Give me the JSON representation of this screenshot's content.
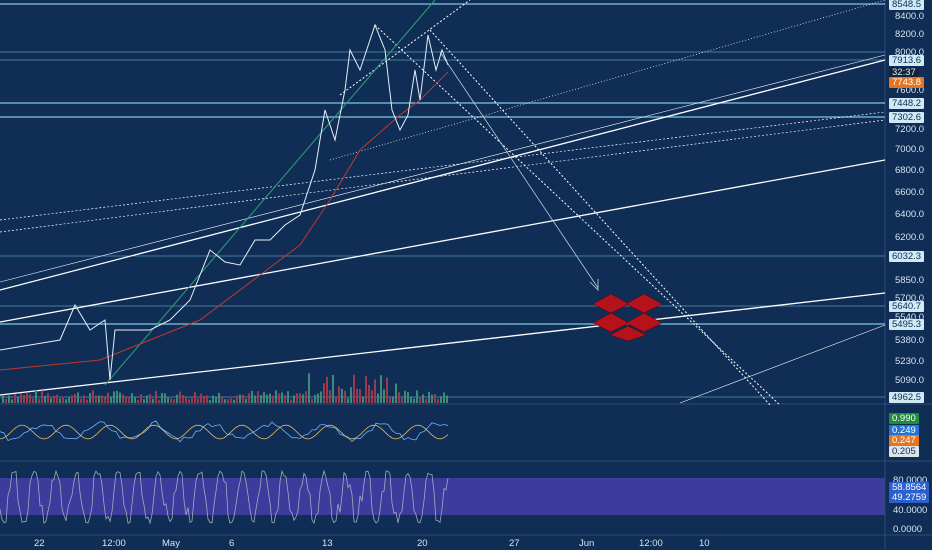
{
  "price_axis": {
    "labels": [
      "8400.0",
      "8200.0",
      "8000.0",
      "7600.0",
      "7200.0",
      "7000.0",
      "6800.0",
      "6600.0",
      "6400.0",
      "6200.0",
      "5850.0",
      "5700.0",
      "5540.0",
      "5380.0",
      "5230.0",
      "5090.0"
    ],
    "badges": [
      "8548.5",
      "7913.6",
      "32:37",
      "7743.8",
      "7448.2",
      "7302.6",
      "6032.3",
      "5640.7",
      "5495.3",
      "4962.5"
    ]
  },
  "indicator_axis": {
    "badges": [
      "0.990",
      "0.249",
      "0.247",
      "0.205"
    ]
  },
  "stoch_axis": {
    "labels": [
      "80.0000",
      "40.0000",
      "0.0000"
    ],
    "badges": [
      "58.8564",
      "49.2759"
    ]
  },
  "time_axis": {
    "labels": [
      "22",
      "12:00",
      "May",
      "6",
      "13",
      "20",
      "27",
      "Jun",
      "12:00",
      "10"
    ]
  }
}
